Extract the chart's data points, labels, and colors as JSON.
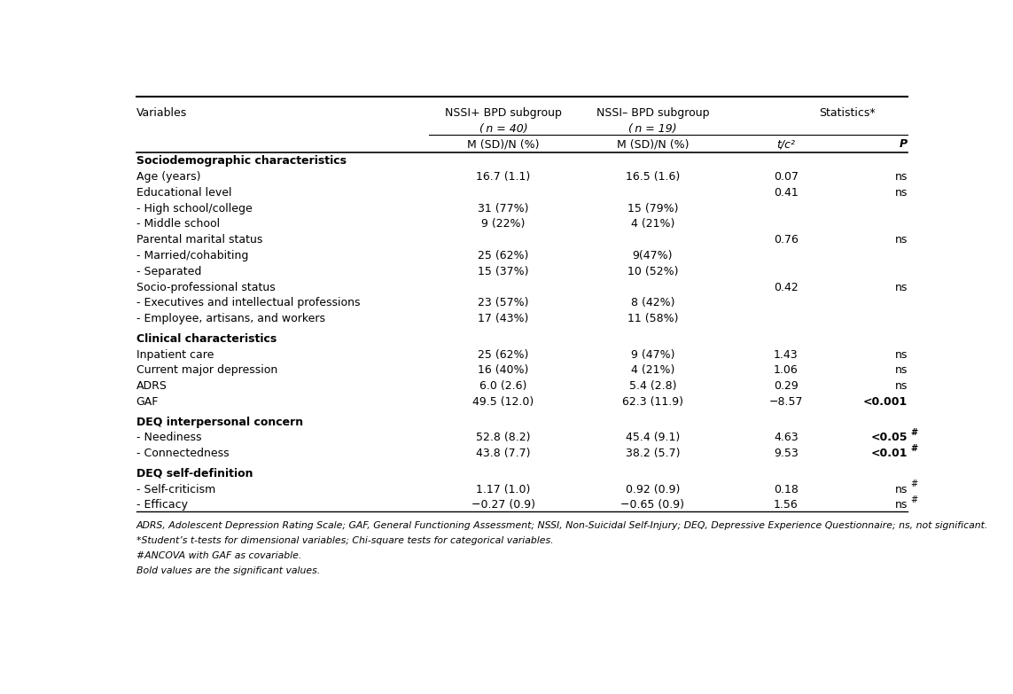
{
  "figsize": [
    11.43,
    7.83
  ],
  "dpi": 100,
  "background_color": "#ffffff",
  "rows": [
    {
      "text": "Sociodemographic characteristics",
      "col2": "",
      "col3": "",
      "col4": "",
      "col5": "",
      "bold": true,
      "section_header": true
    },
    {
      "text": "Age (years)",
      "col2": "16.7 (1.1)",
      "col3": "16.5 (1.6)",
      "col4": "0.07",
      "col5": "ns",
      "col5_bold": false,
      "col5_sup": false,
      "section_header": false
    },
    {
      "text": "Educational level",
      "col2": "",
      "col3": "",
      "col4": "0.41",
      "col5": "ns",
      "col5_bold": false,
      "col5_sup": false,
      "section_header": false
    },
    {
      "text": "- High school/college",
      "col2": "31 (77%)",
      "col3": "15 (79%)",
      "col4": "",
      "col5": "",
      "col5_bold": false,
      "col5_sup": false,
      "section_header": false
    },
    {
      "text": "- Middle school",
      "col2": "9 (22%)",
      "col3": "4 (21%)",
      "col4": "",
      "col5": "",
      "col5_bold": false,
      "col5_sup": false,
      "section_header": false
    },
    {
      "text": "Parental marital status",
      "col2": "",
      "col3": "",
      "col4": "0.76",
      "col5": "ns",
      "col5_bold": false,
      "col5_sup": false,
      "section_header": false
    },
    {
      "text": "- Married/cohabiting",
      "col2": "25 (62%)",
      "col3": "9(47%)",
      "col4": "",
      "col5": "",
      "col5_bold": false,
      "col5_sup": false,
      "section_header": false
    },
    {
      "text": "- Separated",
      "col2": "15 (37%)",
      "col3": "10 (52%)",
      "col4": "",
      "col5": "",
      "col5_bold": false,
      "col5_sup": false,
      "section_header": false
    },
    {
      "text": "Socio-professional status",
      "col2": "",
      "col3": "",
      "col4": "0.42",
      "col5": "ns",
      "col5_bold": false,
      "col5_sup": false,
      "section_header": false
    },
    {
      "text": "- Executives and intellectual professions",
      "col2": "23 (57%)",
      "col3": "8 (42%)",
      "col4": "",
      "col5": "",
      "col5_bold": false,
      "col5_sup": false,
      "section_header": false
    },
    {
      "text": "- Employee, artisans, and workers",
      "col2": "17 (43%)",
      "col3": "11 (58%)",
      "col4": "",
      "col5": "",
      "col5_bold": false,
      "col5_sup": false,
      "section_header": false
    },
    {
      "text": "Clinical characteristics",
      "col2": "",
      "col3": "",
      "col4": "",
      "col5": "",
      "bold": true,
      "section_header": true
    },
    {
      "text": "Inpatient care",
      "col2": "25 (62%)",
      "col3": "9 (47%)",
      "col4": "1.43",
      "col5": "ns",
      "col5_bold": false,
      "col5_sup": false,
      "section_header": false
    },
    {
      "text": "Current major depression",
      "col2": "16 (40%)",
      "col3": "4 (21%)",
      "col4": "1.06",
      "col5": "ns",
      "col5_bold": false,
      "col5_sup": false,
      "section_header": false
    },
    {
      "text": "ADRS",
      "col2": "6.0 (2.6)",
      "col3": "5.4 (2.8)",
      "col4": "0.29",
      "col5": "ns",
      "col5_bold": false,
      "col5_sup": false,
      "section_header": false
    },
    {
      "text": "GAF",
      "col2": "49.5 (12.0)",
      "col3": "62.3 (11.9)",
      "col4": "−8.57",
      "col5": "<0.001",
      "col5_bold": true,
      "col5_sup": false,
      "section_header": false
    },
    {
      "text": "DEQ interpersonal concern",
      "col2": "",
      "col3": "",
      "col4": "",
      "col5": "",
      "bold": true,
      "section_header": true
    },
    {
      "text": "- Neediness",
      "col2": "52.8 (8.2)",
      "col3": "45.4 (9.1)",
      "col4": "4.63",
      "col5": "<0.05",
      "col5_bold": true,
      "col5_sup": true,
      "section_header": false
    },
    {
      "text": "- Connectedness",
      "col2": "43.8 (7.7)",
      "col3": "38.2 (5.7)",
      "col4": "9.53",
      "col5": "<0.01",
      "col5_bold": true,
      "col5_sup": true,
      "section_header": false
    },
    {
      "text": "DEQ self-definition",
      "col2": "",
      "col3": "",
      "col4": "",
      "col5": "",
      "bold": true,
      "section_header": true
    },
    {
      "text": "- Self-criticism",
      "col2": "1.17 (1.0)",
      "col3": "0.92 (0.9)",
      "col4": "0.18",
      "col5": "ns",
      "col5_bold": false,
      "col5_sup": true,
      "section_header": false
    },
    {
      "text": "- Efficacy",
      "col2": "−0.27 (0.9)",
      "col3": "−0.65 (0.9)",
      "col4": "1.56",
      "col5": "ns",
      "col5_bold": false,
      "col5_sup": true,
      "section_header": false
    }
  ],
  "footnotes": [
    "ADRS, Adolescent Depression Rating Scale; GAF, General Functioning Assessment; NSSI, Non-Suicidal Self-Injury; DEQ, Depressive Experience Questionnaire; ns, not significant.",
    "*Student’s t-tests for dimensional variables; Chi-square tests for categorical variables.",
    "#ANCOVA with GAF as covariable.",
    "Bold values are the significant values."
  ]
}
